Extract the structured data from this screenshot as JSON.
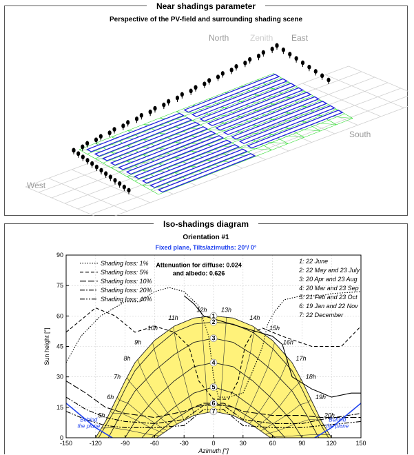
{
  "near_shadings": {
    "title": "Near shadings parameter",
    "subtitle": "Perspective of the PV-field and surrounding shading scene",
    "compass": {
      "north": "North",
      "zenith": "Zenith",
      "east": "East",
      "south": "South",
      "west": "West"
    }
  },
  "iso_shadings": {
    "title": "Iso-shadings diagram",
    "orientation": "Orientation #1",
    "plane": "Fixed plane, Tilts/azimuths: 20°/ 0°",
    "attenuation_line1": "Attenuation for diffuse: 0.024",
    "attenuation_line2": "and albedo: 0.626"
  },
  "colors": {
    "rows": "#2222dd",
    "frame": "#33dd33",
    "grid": "#d0d0d0",
    "sun_area": "#fff27a",
    "plane_line": "#2244ee",
    "plane_text": "#2244ee"
  },
  "chart_data": {
    "type": "line",
    "xlabel": "Azimuth [°]",
    "ylabel": "Sun height [°]",
    "xlim": [
      -150,
      150
    ],
    "ylim": [
      0,
      90
    ],
    "xticks": [
      -150,
      -120,
      -90,
      -60,
      -30,
      0,
      30,
      60,
      90,
      120,
      150
    ],
    "yticks": [
      0,
      15,
      30,
      45,
      60,
      75,
      90
    ],
    "legend": [
      {
        "label": "Shading loss: 1%",
        "style": "dotted"
      },
      {
        "label": "Shading loss: 5%",
        "style": "dashed"
      },
      {
        "label": "Shading loss: 10%",
        "style": "longdash"
      },
      {
        "label": "Shading loss: 20%",
        "style": "dashdot"
      },
      {
        "label": "Shading loss: 40%",
        "style": "dashdotdot"
      }
    ],
    "date_legend": [
      "1: 22 June",
      "2: 22 May and 23 July",
      "3: 20 Apr and 23 Aug",
      "4: 20 Mar and 23 Sep",
      "5: 21 Feb and 23 Oct",
      "6: 19 Jan and 22 Nov",
      "7: 22 December"
    ],
    "sun_paths": [
      {
        "label": "1",
        "points": [
          [
            -120,
            0
          ],
          [
            -110,
            8
          ],
          [
            -100,
            18
          ],
          [
            -90,
            28
          ],
          [
            -80,
            37
          ],
          [
            -60,
            48
          ],
          [
            -40,
            55
          ],
          [
            -20,
            59
          ],
          [
            0,
            60
          ],
          [
            20,
            59
          ],
          [
            40,
            55
          ],
          [
            60,
            48
          ],
          [
            80,
            37
          ],
          [
            90,
            28
          ],
          [
            100,
            18
          ],
          [
            110,
            8
          ],
          [
            120,
            0
          ]
        ]
      },
      {
        "label": "2",
        "points": [
          [
            -117,
            0
          ],
          [
            -100,
            14
          ],
          [
            -90,
            24
          ],
          [
            -80,
            33
          ],
          [
            -60,
            44
          ],
          [
            -40,
            52
          ],
          [
            -20,
            56
          ],
          [
            0,
            57
          ],
          [
            20,
            56
          ],
          [
            40,
            52
          ],
          [
            60,
            44
          ],
          [
            80,
            33
          ],
          [
            90,
            24
          ],
          [
            100,
            14
          ],
          [
            117,
            0
          ]
        ]
      },
      {
        "label": "3",
        "points": [
          [
            -107,
            0
          ],
          [
            -95,
            11
          ],
          [
            -80,
            23
          ],
          [
            -60,
            33
          ],
          [
            -40,
            41
          ],
          [
            -20,
            47
          ],
          [
            0,
            49
          ],
          [
            20,
            47
          ],
          [
            40,
            41
          ],
          [
            60,
            33
          ],
          [
            80,
            23
          ],
          [
            95,
            11
          ],
          [
            107,
            0
          ]
        ]
      },
      {
        "label": "4",
        "points": [
          [
            -90,
            0
          ],
          [
            -80,
            8
          ],
          [
            -60,
            19
          ],
          [
            -40,
            28
          ],
          [
            -20,
            35
          ],
          [
            0,
            37
          ],
          [
            20,
            35
          ],
          [
            40,
            28
          ],
          [
            60,
            19
          ],
          [
            80,
            8
          ],
          [
            90,
            0
          ]
        ]
      },
      {
        "label": "5",
        "points": [
          [
            -73,
            0
          ],
          [
            -60,
            7
          ],
          [
            -40,
            15
          ],
          [
            -20,
            22
          ],
          [
            0,
            25
          ],
          [
            20,
            22
          ],
          [
            40,
            15
          ],
          [
            60,
            7
          ],
          [
            73,
            0
          ]
        ]
      },
      {
        "label": "6",
        "points": [
          [
            -63,
            0
          ],
          [
            -40,
            9
          ],
          [
            -20,
            15
          ],
          [
            0,
            17
          ],
          [
            20,
            15
          ],
          [
            40,
            9
          ],
          [
            63,
            0
          ]
        ]
      },
      {
        "label": "7",
        "points": [
          [
            -58,
            0
          ],
          [
            -40,
            6
          ],
          [
            -20,
            11
          ],
          [
            0,
            13
          ],
          [
            20,
            11
          ],
          [
            40,
            6
          ],
          [
            58,
            0
          ]
        ]
      }
    ],
    "hour_labels": [
      {
        "label": "5h",
        "az": -114,
        "h": 10
      },
      {
        "label": "6h",
        "az": -105,
        "h": 19
      },
      {
        "label": "7h",
        "az": -98,
        "h": 29
      },
      {
        "label": "8h",
        "az": -88,
        "h": 38
      },
      {
        "label": "9h",
        "az": -77,
        "h": 46
      },
      {
        "label": "10h",
        "az": -62,
        "h": 53
      },
      {
        "label": "11h",
        "az": -41,
        "h": 58
      },
      {
        "label": "12h",
        "az": -12,
        "h": 62
      },
      {
        "label": "13h",
        "az": 13,
        "h": 62
      },
      {
        "label": "14h",
        "az": 42,
        "h": 58
      },
      {
        "label": "15h",
        "az": 62,
        "h": 53
      },
      {
        "label": "16h",
        "az": 76,
        "h": 46
      },
      {
        "label": "17h",
        "az": 89,
        "h": 38
      },
      {
        "label": "18h",
        "az": 99,
        "h": 29
      },
      {
        "label": "19h",
        "az": 109,
        "h": 19
      },
      {
        "label": "20h",
        "az": 118,
        "h": 10
      }
    ],
    "iso_curves": [
      {
        "level": "1%",
        "style": "dotted",
        "points": [
          [
            -150,
            37
          ],
          [
            -135,
            50
          ],
          [
            -115,
            60
          ],
          [
            -90,
            67
          ],
          [
            -75,
            67
          ],
          [
            -60,
            72
          ],
          [
            -45,
            74
          ],
          [
            -30,
            72
          ],
          [
            -15,
            65
          ],
          [
            -5,
            50
          ],
          [
            0,
            30
          ],
          [
            5,
            20
          ],
          [
            15,
            20
          ],
          [
            30,
            22
          ],
          [
            40,
            33
          ],
          [
            50,
            45
          ],
          [
            55,
            56
          ],
          [
            62,
            62
          ],
          [
            72,
            68
          ],
          [
            90,
            70
          ],
          [
            110,
            70
          ],
          [
            120,
            71
          ],
          [
            150,
            72
          ]
        ]
      },
      {
        "label_only": false,
        "level": "5%",
        "style": "dashed",
        "points": [
          [
            -150,
            52
          ],
          [
            -135,
            58
          ],
          [
            -120,
            64
          ],
          [
            -100,
            60
          ],
          [
            -80,
            52
          ],
          [
            -60,
            55
          ],
          [
            -40,
            52
          ],
          [
            -25,
            45
          ],
          [
            -15,
            28
          ],
          [
            0,
            19
          ],
          [
            15,
            19
          ],
          [
            25,
            28
          ],
          [
            32,
            45
          ],
          [
            40,
            52
          ],
          [
            50,
            54
          ],
          [
            70,
            50
          ],
          [
            100,
            45
          ],
          [
            130,
            45
          ],
          [
            150,
            55
          ]
        ]
      },
      {
        "level": "10%",
        "style": "longdash",
        "points": [
          [
            -150,
            28
          ],
          [
            -130,
            22
          ],
          [
            -110,
            15
          ],
          [
            -90,
            12
          ],
          [
            -60,
            10
          ],
          [
            -30,
            13
          ],
          [
            -10,
            17
          ],
          [
            0,
            17
          ],
          [
            10,
            17
          ],
          [
            30,
            13
          ],
          [
            60,
            11
          ],
          [
            90,
            11
          ],
          [
            110,
            10
          ],
          [
            150,
            10
          ]
        ]
      },
      {
        "level": "20%",
        "style": "dashdot",
        "points": [
          [
            -150,
            20
          ],
          [
            -130,
            14
          ],
          [
            -110,
            10
          ],
          [
            -90,
            8
          ],
          [
            -60,
            7
          ],
          [
            -30,
            9
          ],
          [
            -10,
            16
          ],
          [
            0,
            16
          ],
          [
            10,
            16
          ],
          [
            30,
            9
          ],
          [
            60,
            7
          ],
          [
            90,
            7
          ],
          [
            110,
            9
          ],
          [
            150,
            12
          ]
        ]
      },
      {
        "level": "40%",
        "style": "dashdotdot",
        "points": [
          [
            -150,
            13
          ],
          [
            -130,
            9
          ],
          [
            -110,
            6
          ],
          [
            -90,
            5
          ],
          [
            -60,
            5
          ],
          [
            -30,
            6
          ],
          [
            -10,
            14
          ],
          [
            0,
            14
          ],
          [
            10,
            14
          ],
          [
            30,
            6
          ],
          [
            60,
            5
          ],
          [
            90,
            5
          ],
          [
            110,
            6
          ],
          [
            150,
            8
          ]
        ]
      }
    ],
    "right_curve": {
      "level": "1%",
      "style": "solid",
      "points": [
        [
          -30,
          70
        ],
        [
          -20,
          66
        ],
        [
          -10,
          60
        ],
        [
          60,
          50
        ],
        [
          70,
          46
        ],
        [
          80,
          30
        ],
        [
          100,
          24
        ],
        [
          120,
          20
        ],
        [
          140,
          22
        ],
        [
          150,
          22
        ]
      ]
    },
    "plane_curve_left": [
      [
        -150,
        17
      ],
      [
        -140,
        13
      ],
      [
        -130,
        9
      ],
      [
        -120,
        5
      ],
      [
        -110,
        2
      ],
      [
        -103,
        0
      ]
    ],
    "plane_curve_right": [
      [
        103,
        0
      ],
      [
        110,
        2
      ],
      [
        120,
        5
      ],
      [
        130,
        9
      ],
      [
        140,
        13
      ],
      [
        150,
        17
      ]
    ],
    "behind_plane_left": [
      "Behind",
      "the plane"
    ],
    "behind_plane_right": [
      "Behind",
      "the plane"
    ]
  }
}
